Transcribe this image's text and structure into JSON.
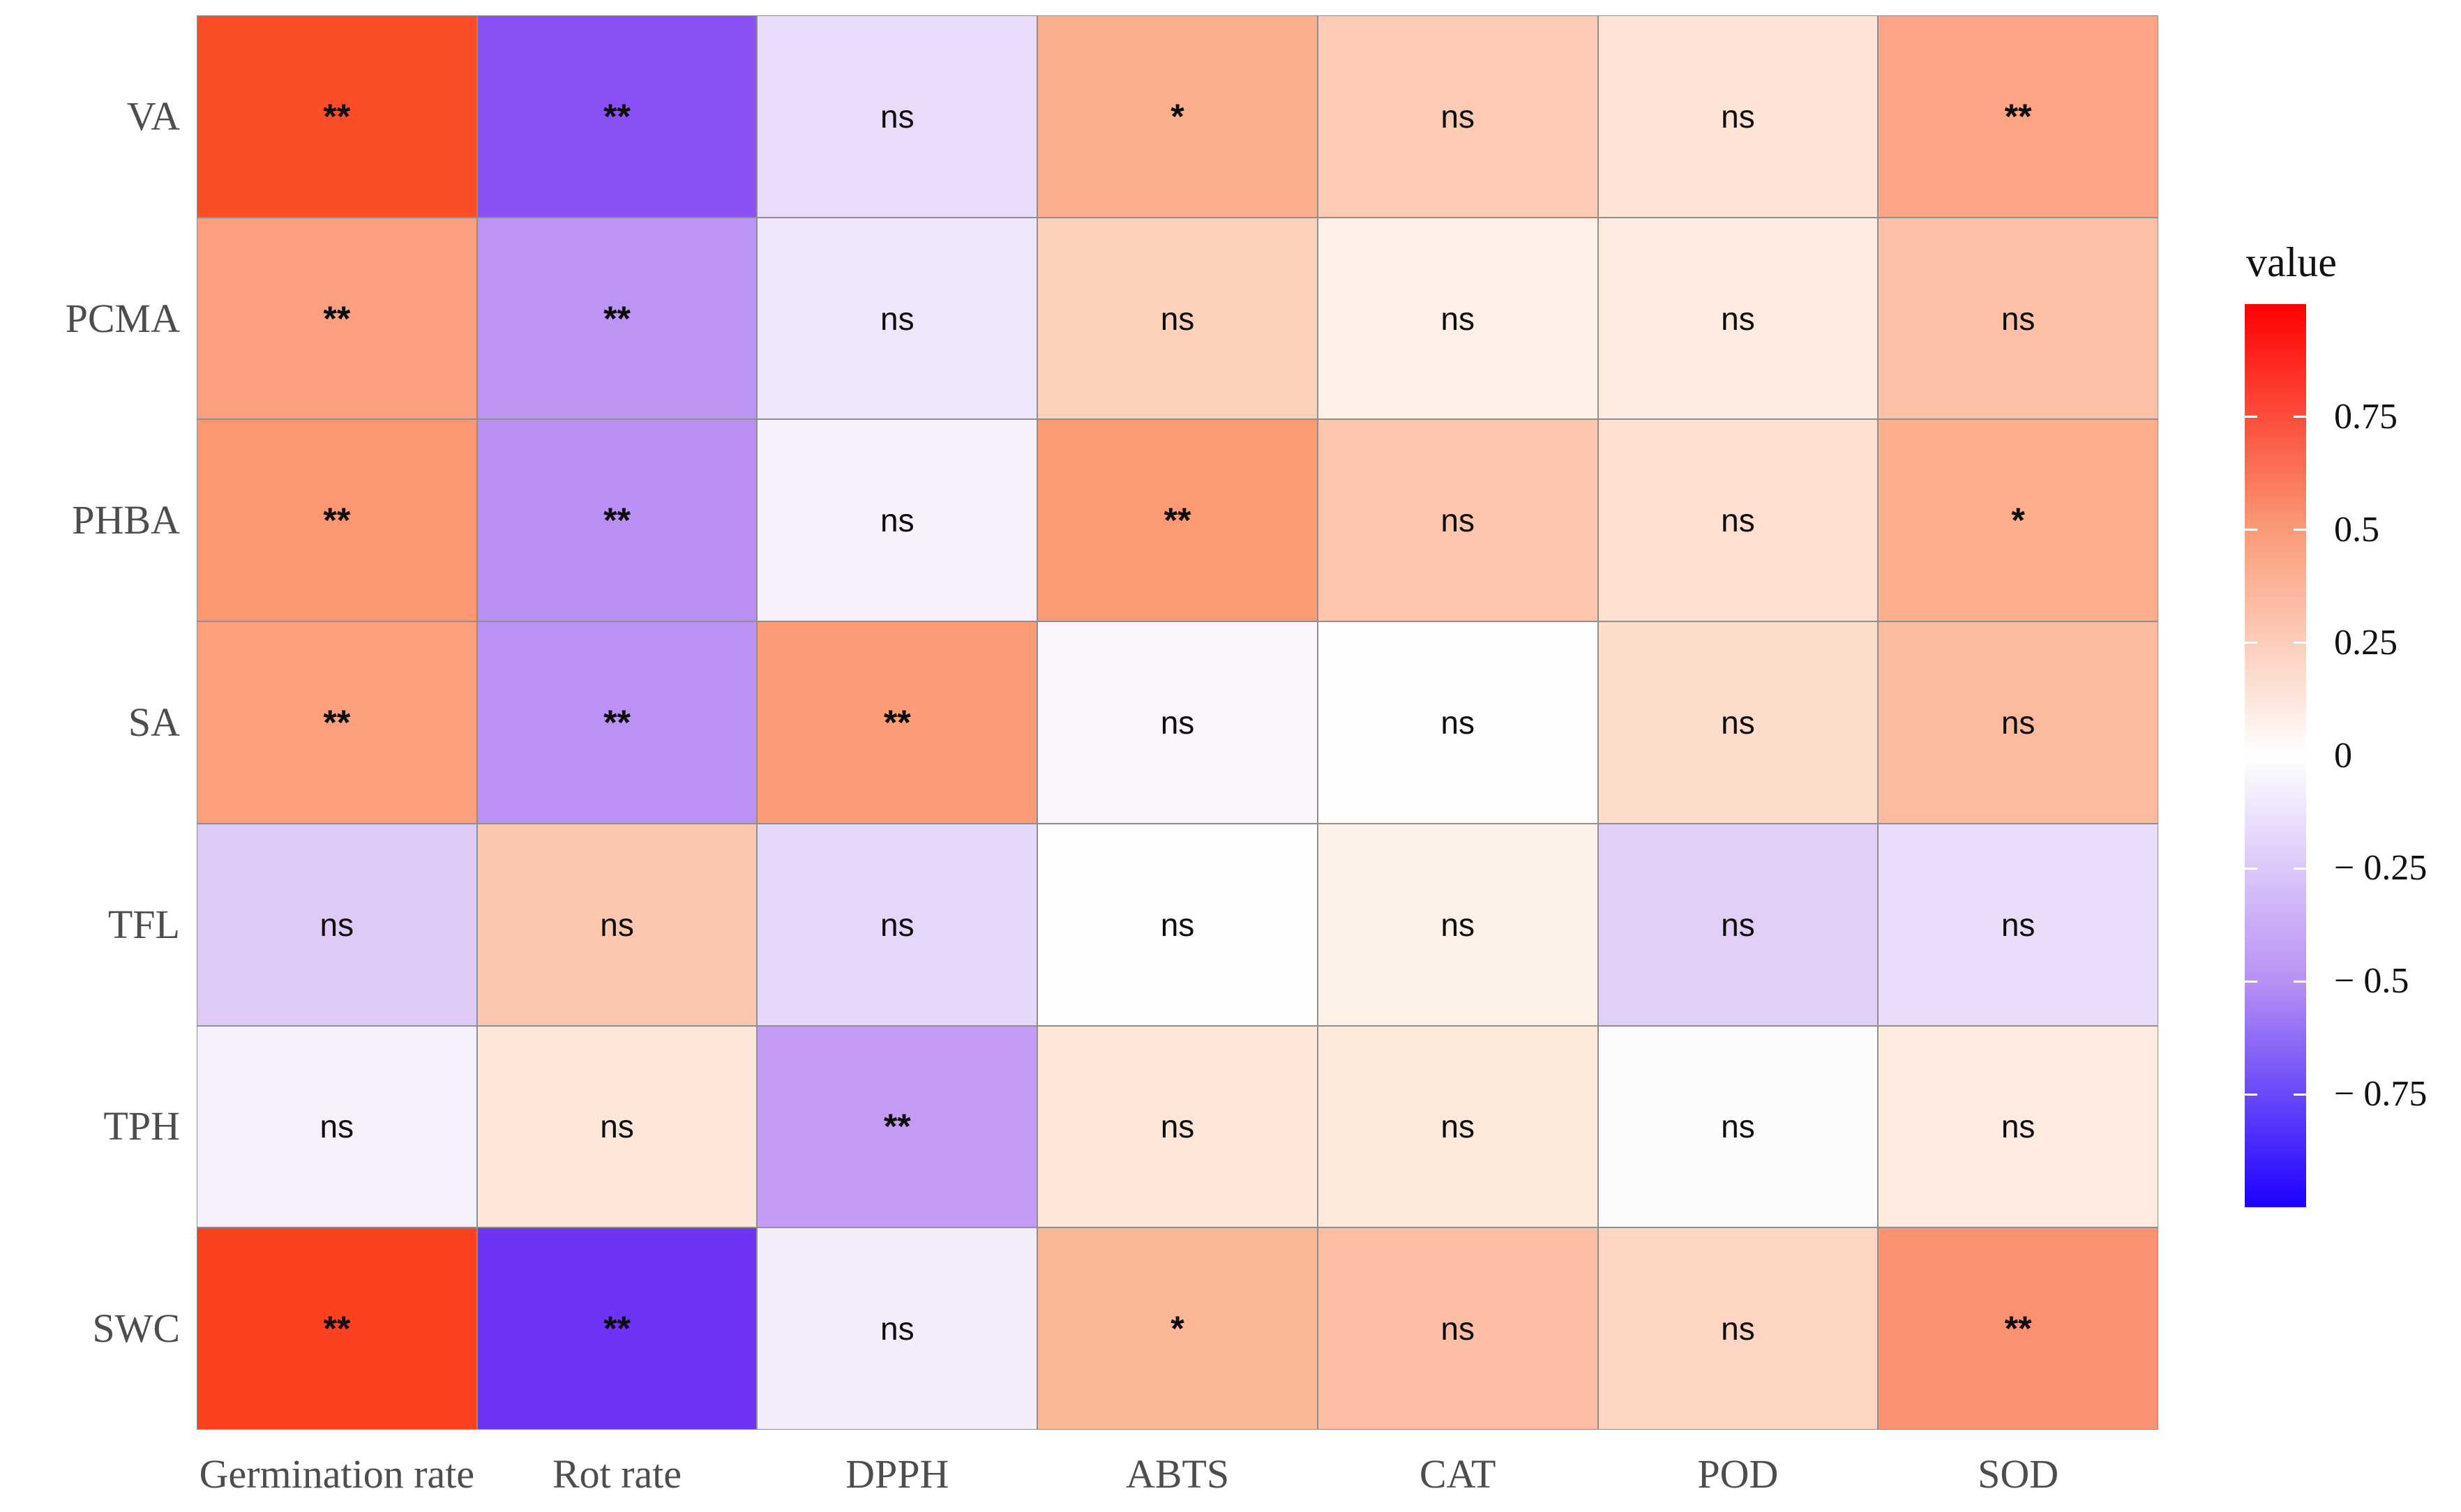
{
  "figure": {
    "background": "#ffffff",
    "grid_border_color": "#8f8f8f",
    "axis_label_color": "#4d4d4d",
    "cell_text_color": "#0d0d0d"
  },
  "chart_data": {
    "type": "heatmap",
    "title": "",
    "xlabel": "",
    "ylabel": "",
    "grid": "on",
    "legend_position": "right",
    "rows": [
      "VA",
      "PCMA",
      "PHBA",
      "SA",
      "TFL",
      "TPH",
      "SWC"
    ],
    "columns": [
      "Germination rate",
      "Rot rate",
      "DPPH",
      "ABTS",
      "CAT",
      "POD",
      "SOD"
    ],
    "values": [
      [
        0.87,
        -0.75,
        -0.13,
        0.5,
        0.3,
        0.16,
        0.55
      ],
      [
        0.57,
        -0.44,
        -0.09,
        0.27,
        0.08,
        0.12,
        0.37
      ],
      [
        0.63,
        -0.47,
        -0.04,
        0.62,
        0.34,
        0.19,
        0.49
      ],
      [
        0.58,
        -0.45,
        0.6,
        -0.03,
        0.01,
        0.21,
        0.4
      ],
      [
        -0.22,
        0.33,
        -0.16,
        0.0,
        0.08,
        -0.19,
        -0.12
      ],
      [
        -0.05,
        0.14,
        -0.38,
        0.15,
        0.13,
        -0.02,
        0.12
      ],
      [
        0.9,
        -0.85,
        -0.06,
        0.42,
        0.38,
        0.25,
        0.64
      ]
    ],
    "significance": [
      [
        "**",
        "**",
        "ns",
        "*",
        "ns",
        "ns",
        "**"
      ],
      [
        "**",
        "**",
        "ns",
        "ns",
        "ns",
        "ns",
        "ns"
      ],
      [
        "**",
        "**",
        "ns",
        "**",
        "ns",
        "ns",
        "*"
      ],
      [
        "**",
        "**",
        "**",
        "ns",
        "ns",
        "ns",
        "ns"
      ],
      [
        "ns",
        "ns",
        "ns",
        "ns",
        "ns",
        "ns",
        "ns"
      ],
      [
        "ns",
        "ns",
        "**",
        "ns",
        "ns",
        "ns",
        "ns"
      ],
      [
        "**",
        "**",
        "ns",
        "*",
        "ns",
        "ns",
        "**"
      ]
    ],
    "cell_colors": [
      [
        "#FB4E28",
        "#8A51F6",
        "#E9DBF9",
        "#FCAF8E",
        "#FDCBB4",
        "#FEE4D7",
        "#FBA586"
      ],
      [
        "#FBA07E",
        "#BC94F3",
        "#F0E6FB",
        "#FDD0BA",
        "#FEF0E7",
        "#FEEBE0",
        "#FCC0A6"
      ],
      [
        "#FB9871",
        "#B98FF3",
        "#F8F0FC",
        "#FB9A73",
        "#FDC5AC",
        "#FEDFD0",
        "#FCAE8D"
      ],
      [
        "#FB9F7C",
        "#BB92F4",
        "#FB9C77",
        "#FAF5FD",
        "#FFFDFC",
        "#FDDCCB",
        "#FCBB9F"
      ],
      [
        "#DFCAF7",
        "#FCC7AF",
        "#E6D6F9",
        "#FEFEFE",
        "#FDF0E7",
        "#E2CFF8",
        "#EADDF9"
      ],
      [
        "#F6F0FB",
        "#FDE7DA",
        "#C49BF5",
        "#FDE6D8",
        "#FDE8DC",
        "#FEFBFF",
        "#FDEBE0"
      ],
      [
        "#FB4220",
        "#6D33F6",
        "#F5ECFB",
        "#FCB797",
        "#FCBFA3",
        "#FDD5C2",
        "#FA9271"
      ]
    ],
    "legend": {
      "title": "value",
      "min": -1,
      "max": 1,
      "ticks": [
        0.75,
        0.5,
        0.25,
        0,
        -0.25,
        -0.5,
        -0.75
      ],
      "tick_labels": [
        "0.75",
        "0.5",
        "0.25",
        "0",
        "− 0.25",
        "− 0.5",
        "− 0.75"
      ],
      "gradient_high": "#FF0000",
      "gradient_mid_high": "#FA9B77",
      "gradient_mid": "#FFFFFF",
      "gradient_mid_low": "#B891F4",
      "gradient_low": "#1C00FF"
    }
  }
}
